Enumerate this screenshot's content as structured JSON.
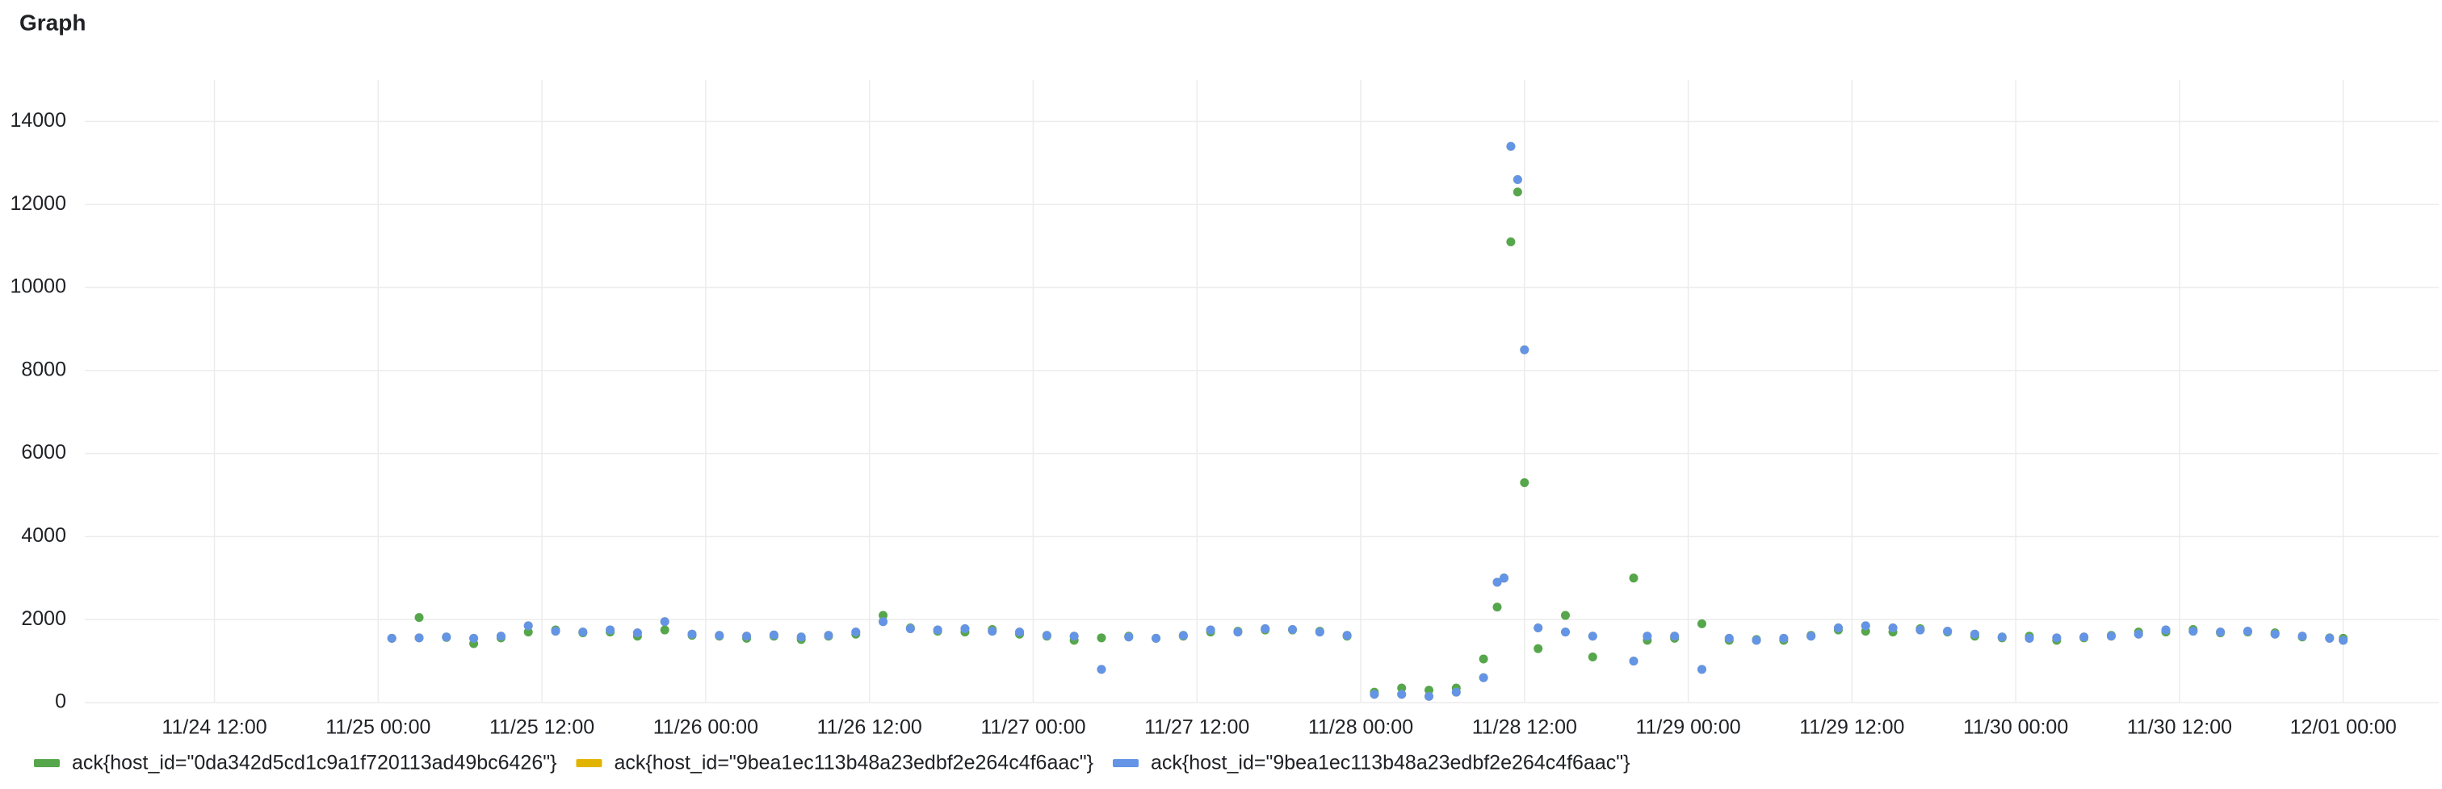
{
  "chart_data": {
    "type": "scatter",
    "title": "Graph",
    "x": [
      "11/25 01:00",
      "11/25 03:00",
      "11/25 05:00",
      "11/25 07:00",
      "11/25 09:00",
      "11/25 11:00",
      "11/25 13:00",
      "11/25 15:00",
      "11/25 17:00",
      "11/25 19:00",
      "11/25 21:00",
      "11/25 23:00",
      "11/26 01:00",
      "11/26 03:00",
      "11/26 05:00",
      "11/26 07:00",
      "11/26 09:00",
      "11/26 11:00",
      "11/26 13:00",
      "11/26 15:00",
      "11/26 17:00",
      "11/26 19:00",
      "11/26 21:00",
      "11/26 23:00",
      "11/27 01:00",
      "11/27 03:00",
      "11/27 05:00",
      "11/27 07:00",
      "11/27 09:00",
      "11/27 11:00",
      "11/27 13:00",
      "11/27 15:00",
      "11/27 17:00",
      "11/27 19:00",
      "11/27 21:00",
      "11/27 23:00",
      "11/28 01:00",
      "11/28 03:00",
      "11/28 05:00",
      "11/28 07:00",
      "11/28 09:00",
      "11/28 10:00",
      "11/28 10:30",
      "11/28 11:00",
      "11/28 11:30",
      "11/28 12:00",
      "11/28 13:00",
      "11/28 15:00",
      "11/28 17:00",
      "11/28 20:00",
      "11/28 21:00",
      "11/28 23:00",
      "11/29 01:00",
      "11/29 03:00",
      "11/29 05:00",
      "11/29 07:00",
      "11/29 09:00",
      "11/29 11:00",
      "11/29 13:00",
      "11/29 15:00",
      "11/29 17:00",
      "11/29 19:00",
      "11/29 21:00",
      "11/29 23:00",
      "11/30 01:00",
      "11/30 03:00",
      "11/30 05:00",
      "11/30 07:00",
      "11/30 09:00",
      "11/30 11:00",
      "11/30 13:00",
      "11/30 15:00",
      "11/30 17:00",
      "11/30 19:00",
      "11/30 21:00",
      "11/30 23:00",
      "12/01 00:00"
    ],
    "series": [
      {
        "name": "ack{host_id=\"0da342d5cd1c9a1f720113ad49bc6426\"}",
        "color": "#56a64b",
        "values": [
          1550,
          2050,
          1570,
          1420,
          1560,
          1700,
          1750,
          1680,
          1700,
          1600,
          1750,
          1620,
          1600,
          1550,
          1600,
          1520,
          1600,
          1650,
          2100,
          1800,
          1720,
          1700,
          1760,
          1650,
          1600,
          1500,
          1560,
          1600,
          1550,
          1600,
          1700,
          1720,
          1750,
          1750,
          1720,
          1600,
          250,
          350,
          300,
          350,
          1050,
          2300,
          3000,
          11100,
          12300,
          5300,
          1300,
          2100,
          1100,
          3000,
          1500,
          1550,
          1900,
          1500,
          1520,
          1500,
          1620,
          1750,
          1720,
          1700,
          1780,
          1700,
          1600,
          1560,
          1600,
          1500,
          1560,
          1620,
          1700,
          1700,
          1760,
          1680,
          1700,
          1680,
          1580,
          1560,
          1550
        ]
      },
      {
        "name": "ack{host_id=\"9bea1ec113b48a23edbf2e264c4f6aac\"}",
        "color": "#e0b400",
        "values": [
          1550,
          1560,
          1580,
          1550,
          1600,
          1850,
          1720,
          1700,
          1750,
          1680,
          1950,
          1650,
          1620,
          1600,
          1630,
          1580,
          1620,
          1700,
          1950,
          1780,
          1750,
          1780,
          1720,
          1700,
          1620,
          1600,
          800,
          1580,
          1550,
          1620,
          1750,
          1700,
          1780,
          1760,
          1700,
          1620,
          200,
          200,
          150,
          250,
          600,
          2900,
          3000,
          13400,
          12600,
          8500,
          1800,
          1700,
          1600,
          1000,
          1600,
          1600,
          800,
          1550,
          1500,
          1550,
          1600,
          1800,
          1850,
          1800,
          1750,
          1720,
          1650,
          1580,
          1550,
          1560,
          1580,
          1600,
          1650,
          1750,
          1720,
          1700,
          1720,
          1650,
          1600,
          1550,
          1500
        ]
      },
      {
        "name": "ack{host_id=\"9bea1ec113b48a23edbf2e264c4f6aac\"}",
        "color": "#6394e6",
        "values": [
          1550,
          1560,
          1580,
          1550,
          1600,
          1850,
          1720,
          1700,
          1750,
          1680,
          1950,
          1650,
          1620,
          1600,
          1630,
          1580,
          1620,
          1700,
          1950,
          1780,
          1750,
          1780,
          1720,
          1700,
          1620,
          1600,
          800,
          1580,
          1550,
          1620,
          1750,
          1700,
          1780,
          1760,
          1700,
          1620,
          200,
          200,
          150,
          250,
          600,
          2900,
          3000,
          13400,
          12600,
          8500,
          1800,
          1700,
          1600,
          1000,
          1600,
          1600,
          800,
          1550,
          1500,
          1550,
          1600,
          1800,
          1850,
          1800,
          1750,
          1720,
          1650,
          1580,
          1550,
          1560,
          1580,
          1600,
          1650,
          1750,
          1720,
          1700,
          1720,
          1650,
          1600,
          1550,
          1500
        ]
      }
    ],
    "xlim": [
      "11/24 02:30",
      "12/01 07:00"
    ],
    "xticks": [
      "11/24 12:00",
      "11/25 00:00",
      "11/25 12:00",
      "11/26 00:00",
      "11/26 12:00",
      "11/27 00:00",
      "11/27 12:00",
      "11/28 00:00",
      "11/28 12:00",
      "11/29 00:00",
      "11/29 12:00",
      "11/30 00:00",
      "11/30 12:00",
      "12/01 00:00"
    ],
    "ylim": [
      0,
      15000
    ],
    "yticks": [
      0,
      2000,
      4000,
      6000,
      8000,
      10000,
      12000,
      14000
    ],
    "grid": true,
    "legend": "bottom"
  }
}
